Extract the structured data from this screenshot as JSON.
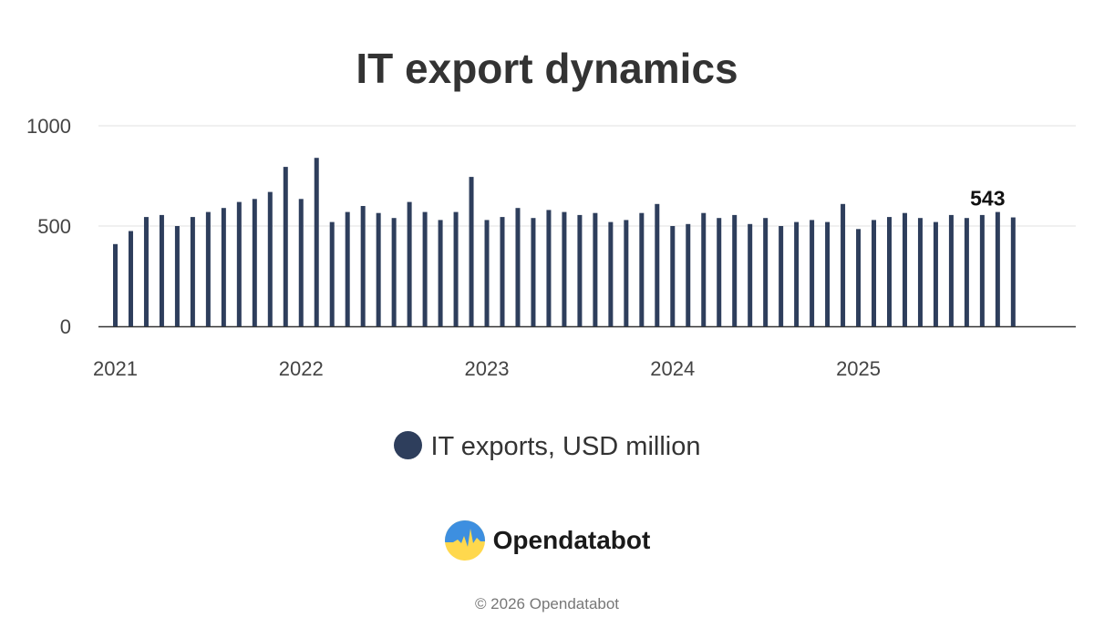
{
  "chart_data": {
    "type": "bar",
    "title": "IT export dynamics",
    "series": [
      {
        "name": "IT exports, USD million",
        "color": "#2e3e5c",
        "values": [
          410,
          475,
          545,
          555,
          500,
          545,
          570,
          590,
          620,
          635,
          670,
          795,
          635,
          840,
          520,
          570,
          600,
          565,
          540,
          620,
          570,
          530,
          570,
          745,
          530,
          545,
          590,
          540,
          580,
          570,
          555,
          565,
          520,
          530,
          565,
          610,
          500,
          510,
          565,
          540,
          555,
          510,
          540,
          500,
          520,
          530,
          520,
          610,
          485,
          530,
          545,
          565,
          540,
          520,
          555,
          540,
          555,
          570,
          543
        ]
      }
    ],
    "x_start_month": "2021-01",
    "x_tick_labels": [
      "2021",
      "2022",
      "2023",
      "2024",
      "2025"
    ],
    "y_ticks": [
      0,
      500,
      1000
    ],
    "ylim": [
      0,
      1000
    ],
    "last_value_label": "543",
    "grid": true
  },
  "legend": {
    "label": "IT exports, USD million"
  },
  "brand": {
    "name": "Opendatabot"
  },
  "footer": {
    "text": "© 2026 Opendatabot"
  }
}
